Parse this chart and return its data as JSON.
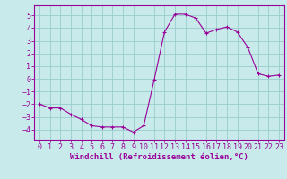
{
  "x": [
    0,
    1,
    2,
    3,
    4,
    5,
    6,
    7,
    8,
    9,
    10,
    11,
    12,
    13,
    14,
    15,
    16,
    17,
    18,
    19,
    20,
    21,
    22,
    23
  ],
  "y": [
    -2.0,
    -2.3,
    -2.3,
    -2.8,
    -3.2,
    -3.7,
    -3.8,
    -3.8,
    -3.8,
    -4.2,
    -3.7,
    -0.1,
    3.7,
    5.1,
    5.1,
    4.8,
    3.6,
    3.9,
    4.1,
    3.7,
    2.5,
    0.4,
    0.2,
    0.3
  ],
  "line_color": "#990099",
  "marker": "+",
  "marker_size": 3,
  "marker_lw": 0.8,
  "bg_color": "#c8eaea",
  "grid_color": "#99cccc",
  "xlabel": "Windchill (Refroidissement éolien,°C)",
  "xlabel_fontsize": 6.5,
  "tick_fontsize": 6,
  "xlim": [
    -0.5,
    23.5
  ],
  "ylim": [
    -4.8,
    5.8
  ],
  "yticks": [
    -4,
    -3,
    -2,
    -1,
    0,
    1,
    2,
    3,
    4,
    5
  ],
  "xticks": [
    0,
    1,
    2,
    3,
    4,
    5,
    6,
    7,
    8,
    9,
    10,
    11,
    12,
    13,
    14,
    15,
    16,
    17,
    18,
    19,
    20,
    21,
    22,
    23
  ]
}
